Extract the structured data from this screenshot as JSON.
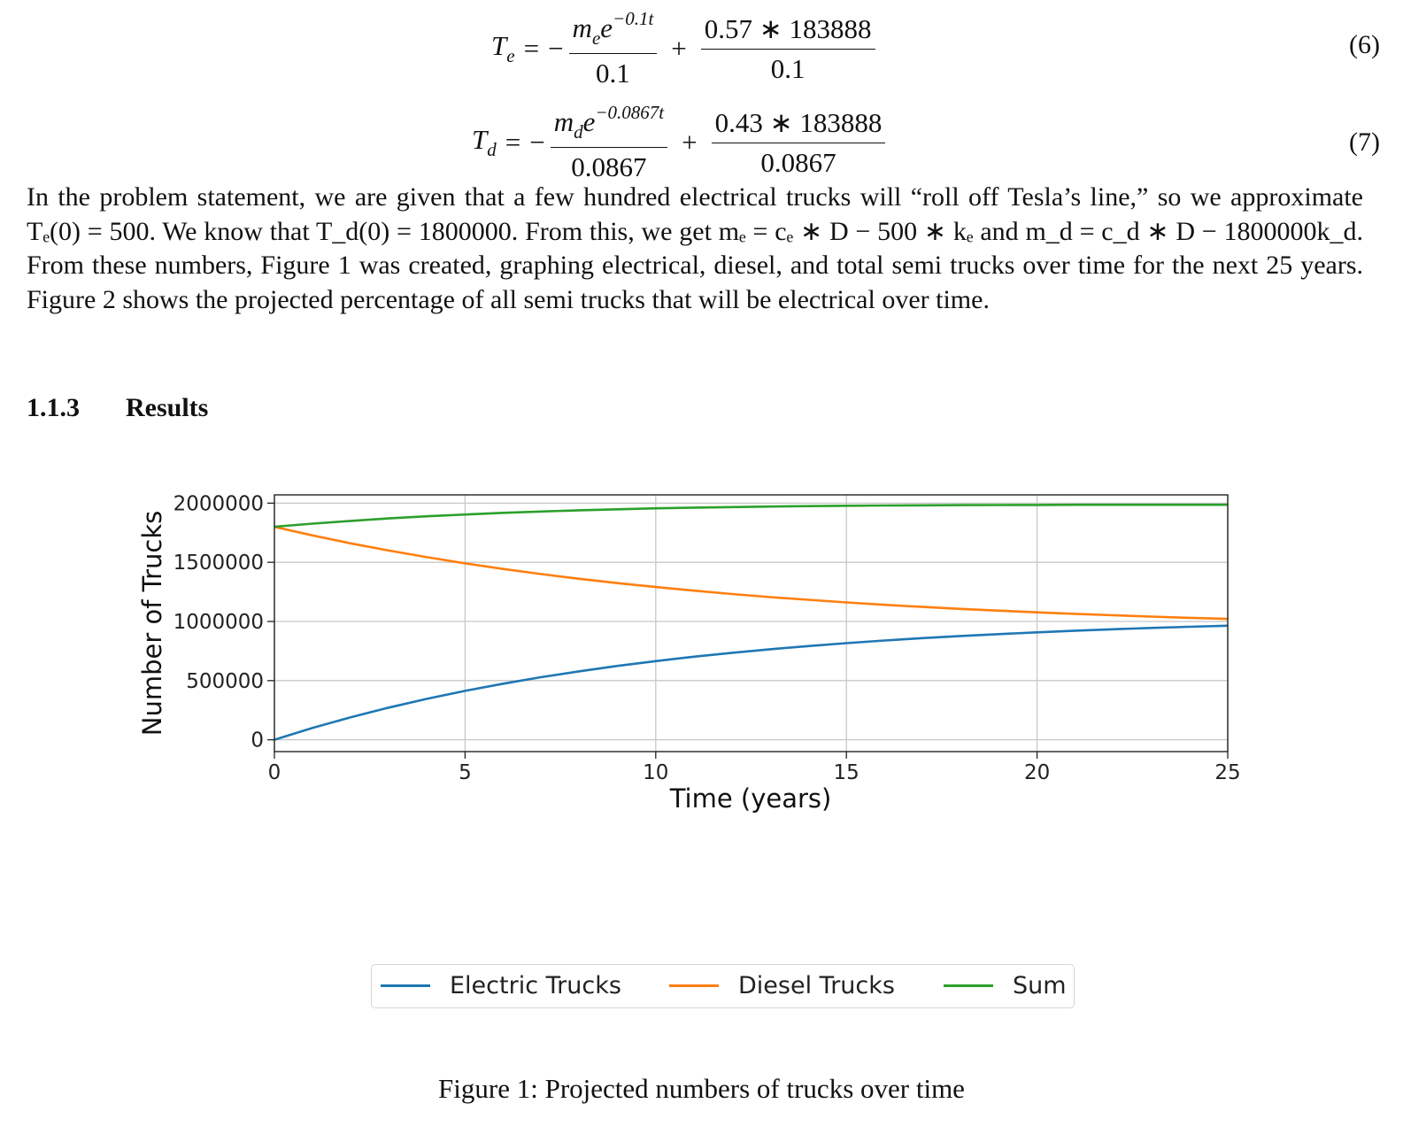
{
  "equations": [
    {
      "number": "(6)",
      "lhs_symbol": "T",
      "lhs_sub": "e",
      "frac1_var": "m",
      "frac1_var_sub": "e",
      "frac1_exp": "−0.1t",
      "frac1_den": "0.1",
      "frac2_num": "0.57 ∗ 183888",
      "frac2_den": "0.1"
    },
    {
      "number": "(7)",
      "lhs_symbol": "T",
      "lhs_sub": "d",
      "frac1_var": "m",
      "frac1_var_sub": "d",
      "frac1_exp": "−0.0867t",
      "frac1_den": "0.0867",
      "frac2_num": "0.43 ∗ 183888",
      "frac2_den": "0.0867"
    }
  ],
  "paragraph": "In the problem statement, we are given that a few hundred electrical trucks will “roll off Tesla’s line,” so we approximate Tₑ(0) = 500. We know that T_d(0) = 1800000. From this, we get mₑ = cₑ ∗ D − 500 ∗ kₑ and m_d = c_d ∗ D − 1800000k_d. From these numbers, Figure 1 was created, graphing electrical, diesel, and total semi trucks over time for the next 25 years. Figure 2 shows the projected percentage of all semi trucks that will be electrical over time.",
  "section": {
    "number": "1.1.3",
    "title": "Results"
  },
  "chart_data": {
    "type": "line",
    "xlabel": "Time (years)",
    "ylabel": "Number of Trucks",
    "xlim": [
      0,
      25
    ],
    "ylim": [
      -100000,
      2070000
    ],
    "xticks": [
      0,
      5,
      10,
      15,
      20,
      25
    ],
    "yticks": [
      0,
      500000,
      1000000,
      1500000,
      2000000
    ],
    "grid": true,
    "legend": "bottom-center",
    "x": [
      0,
      1,
      2,
      3,
      4,
      5,
      6,
      7,
      8,
      9,
      10,
      11,
      12,
      13,
      14,
      15,
      16,
      17,
      18,
      19,
      20,
      21,
      22,
      23,
      24,
      25
    ],
    "series": [
      {
        "name": "Electric Trucks",
        "color": "#1f77b4",
        "values": [
          500,
          100000,
          190000,
          272000,
          346000,
          413000,
          474000,
          529000,
          579000,
          624000,
          665000,
          702000,
          735000,
          765000,
          792000,
          817000,
          839000,
          859000,
          877000,
          893000,
          908000,
          922000,
          934000,
          945000,
          955000,
          964000
        ]
      },
      {
        "name": "Diesel Trucks",
        "color": "#ff7f0e",
        "values": [
          1800000,
          1727000,
          1660000,
          1599000,
          1543000,
          1491000,
          1444000,
          1400000,
          1361000,
          1324000,
          1291000,
          1260000,
          1232000,
          1206000,
          1183000,
          1161000,
          1141000,
          1123000,
          1106000,
          1091000,
          1077000,
          1064000,
          1052000,
          1041000,
          1031000,
          1022000
        ]
      },
      {
        "name": "Sum",
        "color": "#2ca02c",
        "values": [
          1800500,
          1827000,
          1850000,
          1871000,
          1889000,
          1904000,
          1918000,
          1929000,
          1940000,
          1948000,
          1956000,
          1962000,
          1967000,
          1971000,
          1975000,
          1978000,
          1980000,
          1982000,
          1983000,
          1984000,
          1985000,
          1986000,
          1986000,
          1986000,
          1986000,
          1986000
        ]
      }
    ]
  },
  "caption": "Figure 1: Projected numbers of trucks over time"
}
